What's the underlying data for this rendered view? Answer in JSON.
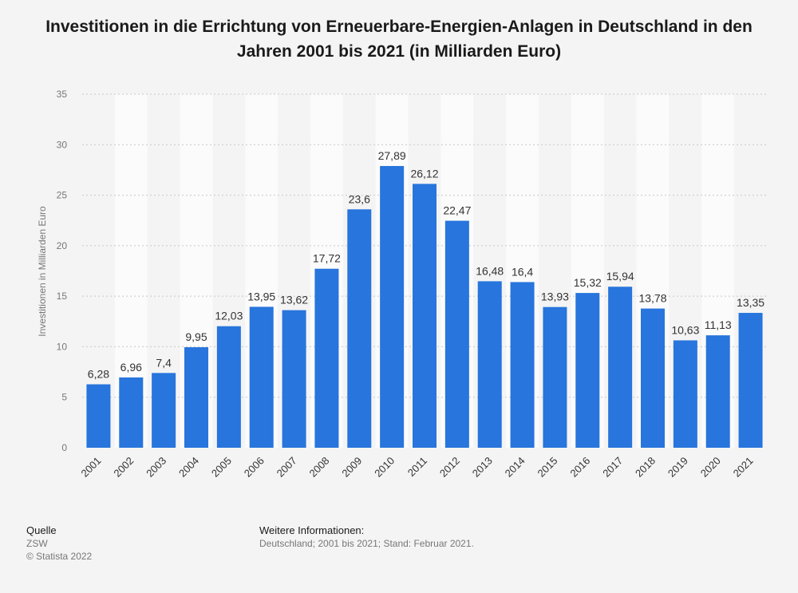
{
  "chart_data": {
    "type": "bar",
    "title": "Investitionen in die Errichtung von Erneuerbare-Energien-Anlagen in Deutschland in den Jahren 2001 bis 2021 (in Milliarden Euro)",
    "ylabel": "Investitionen in Milliarden Euro",
    "xlabel": "",
    "categories": [
      "2001",
      "2002",
      "2003",
      "2004",
      "2005",
      "2006",
      "2007",
      "2008",
      "2009",
      "2010",
      "2011",
      "2012",
      "2013",
      "2014",
      "2015",
      "2016",
      "2017",
      "2018",
      "2019",
      "2020",
      "2021"
    ],
    "values": [
      6.28,
      6.96,
      7.4,
      9.95,
      12.03,
      13.95,
      13.62,
      17.72,
      23.6,
      27.89,
      26.12,
      22.47,
      16.48,
      16.4,
      13.93,
      15.32,
      15.94,
      13.78,
      10.63,
      11.13,
      13.35
    ],
    "value_labels": [
      "6,28",
      "6,96",
      "7,4",
      "9,95",
      "12,03",
      "13,95",
      "13,62",
      "17,72",
      "23,6",
      "27,89",
      "26,12",
      "22,47",
      "16,48",
      "16,4",
      "13,93",
      "15,32",
      "15,94",
      "13,78",
      "10,63",
      "11,13",
      "13,35"
    ],
    "y_ticks": [
      0,
      5,
      10,
      15,
      20,
      25,
      30,
      35
    ],
    "ylim": [
      0,
      35
    ],
    "grid": true,
    "bar_color": "#2775dd"
  },
  "footer": {
    "source_heading": "Quelle",
    "source_name": "ZSW",
    "copyright": "© Statista 2022",
    "info_heading": "Weitere Informationen:",
    "info_text": "Deutschland; 2001 bis 2021; Stand: Februar 2021."
  }
}
